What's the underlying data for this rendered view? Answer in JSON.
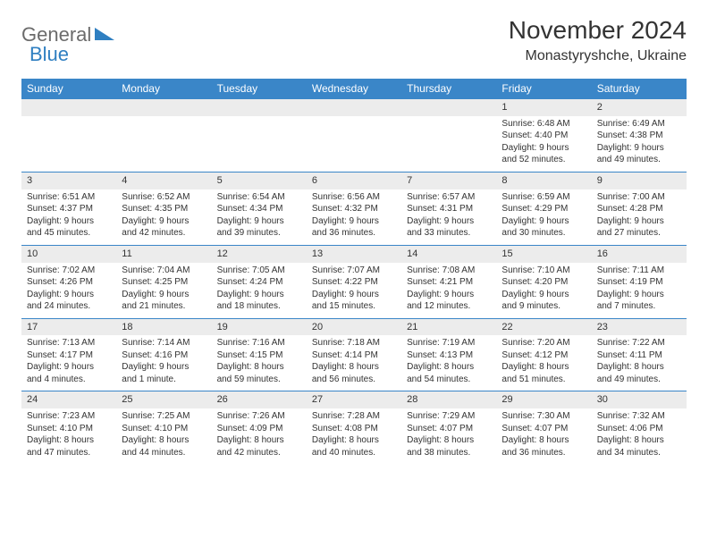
{
  "logo": {
    "text1": "General",
    "text2": "Blue"
  },
  "title": "November 2024",
  "location": "Monastyryshche, Ukraine",
  "colors": {
    "header_bg": "#3a86c8",
    "header_fg": "#ffffff",
    "daynum_bg": "#ececec",
    "border": "#3a86c8",
    "text": "#333333",
    "logo_gray": "#6b6b6b",
    "logo_blue": "#2f7fc1"
  },
  "day_headers": [
    "Sunday",
    "Monday",
    "Tuesday",
    "Wednesday",
    "Thursday",
    "Friday",
    "Saturday"
  ],
  "weeks": [
    [
      {
        "n": "",
        "l1": "",
        "l2": "",
        "l3": "",
        "l4": ""
      },
      {
        "n": "",
        "l1": "",
        "l2": "",
        "l3": "",
        "l4": ""
      },
      {
        "n": "",
        "l1": "",
        "l2": "",
        "l3": "",
        "l4": ""
      },
      {
        "n": "",
        "l1": "",
        "l2": "",
        "l3": "",
        "l4": ""
      },
      {
        "n": "",
        "l1": "",
        "l2": "",
        "l3": "",
        "l4": ""
      },
      {
        "n": "1",
        "l1": "Sunrise: 6:48 AM",
        "l2": "Sunset: 4:40 PM",
        "l3": "Daylight: 9 hours",
        "l4": "and 52 minutes."
      },
      {
        "n": "2",
        "l1": "Sunrise: 6:49 AM",
        "l2": "Sunset: 4:38 PM",
        "l3": "Daylight: 9 hours",
        "l4": "and 49 minutes."
      }
    ],
    [
      {
        "n": "3",
        "l1": "Sunrise: 6:51 AM",
        "l2": "Sunset: 4:37 PM",
        "l3": "Daylight: 9 hours",
        "l4": "and 45 minutes."
      },
      {
        "n": "4",
        "l1": "Sunrise: 6:52 AM",
        "l2": "Sunset: 4:35 PM",
        "l3": "Daylight: 9 hours",
        "l4": "and 42 minutes."
      },
      {
        "n": "5",
        "l1": "Sunrise: 6:54 AM",
        "l2": "Sunset: 4:34 PM",
        "l3": "Daylight: 9 hours",
        "l4": "and 39 minutes."
      },
      {
        "n": "6",
        "l1": "Sunrise: 6:56 AM",
        "l2": "Sunset: 4:32 PM",
        "l3": "Daylight: 9 hours",
        "l4": "and 36 minutes."
      },
      {
        "n": "7",
        "l1": "Sunrise: 6:57 AM",
        "l2": "Sunset: 4:31 PM",
        "l3": "Daylight: 9 hours",
        "l4": "and 33 minutes."
      },
      {
        "n": "8",
        "l1": "Sunrise: 6:59 AM",
        "l2": "Sunset: 4:29 PM",
        "l3": "Daylight: 9 hours",
        "l4": "and 30 minutes."
      },
      {
        "n": "9",
        "l1": "Sunrise: 7:00 AM",
        "l2": "Sunset: 4:28 PM",
        "l3": "Daylight: 9 hours",
        "l4": "and 27 minutes."
      }
    ],
    [
      {
        "n": "10",
        "l1": "Sunrise: 7:02 AM",
        "l2": "Sunset: 4:26 PM",
        "l3": "Daylight: 9 hours",
        "l4": "and 24 minutes."
      },
      {
        "n": "11",
        "l1": "Sunrise: 7:04 AM",
        "l2": "Sunset: 4:25 PM",
        "l3": "Daylight: 9 hours",
        "l4": "and 21 minutes."
      },
      {
        "n": "12",
        "l1": "Sunrise: 7:05 AM",
        "l2": "Sunset: 4:24 PM",
        "l3": "Daylight: 9 hours",
        "l4": "and 18 minutes."
      },
      {
        "n": "13",
        "l1": "Sunrise: 7:07 AM",
        "l2": "Sunset: 4:22 PM",
        "l3": "Daylight: 9 hours",
        "l4": "and 15 minutes."
      },
      {
        "n": "14",
        "l1": "Sunrise: 7:08 AM",
        "l2": "Sunset: 4:21 PM",
        "l3": "Daylight: 9 hours",
        "l4": "and 12 minutes."
      },
      {
        "n": "15",
        "l1": "Sunrise: 7:10 AM",
        "l2": "Sunset: 4:20 PM",
        "l3": "Daylight: 9 hours",
        "l4": "and 9 minutes."
      },
      {
        "n": "16",
        "l1": "Sunrise: 7:11 AM",
        "l2": "Sunset: 4:19 PM",
        "l3": "Daylight: 9 hours",
        "l4": "and 7 minutes."
      }
    ],
    [
      {
        "n": "17",
        "l1": "Sunrise: 7:13 AM",
        "l2": "Sunset: 4:17 PM",
        "l3": "Daylight: 9 hours",
        "l4": "and 4 minutes."
      },
      {
        "n": "18",
        "l1": "Sunrise: 7:14 AM",
        "l2": "Sunset: 4:16 PM",
        "l3": "Daylight: 9 hours",
        "l4": "and 1 minute."
      },
      {
        "n": "19",
        "l1": "Sunrise: 7:16 AM",
        "l2": "Sunset: 4:15 PM",
        "l3": "Daylight: 8 hours",
        "l4": "and 59 minutes."
      },
      {
        "n": "20",
        "l1": "Sunrise: 7:18 AM",
        "l2": "Sunset: 4:14 PM",
        "l3": "Daylight: 8 hours",
        "l4": "and 56 minutes."
      },
      {
        "n": "21",
        "l1": "Sunrise: 7:19 AM",
        "l2": "Sunset: 4:13 PM",
        "l3": "Daylight: 8 hours",
        "l4": "and 54 minutes."
      },
      {
        "n": "22",
        "l1": "Sunrise: 7:20 AM",
        "l2": "Sunset: 4:12 PM",
        "l3": "Daylight: 8 hours",
        "l4": "and 51 minutes."
      },
      {
        "n": "23",
        "l1": "Sunrise: 7:22 AM",
        "l2": "Sunset: 4:11 PM",
        "l3": "Daylight: 8 hours",
        "l4": "and 49 minutes."
      }
    ],
    [
      {
        "n": "24",
        "l1": "Sunrise: 7:23 AM",
        "l2": "Sunset: 4:10 PM",
        "l3": "Daylight: 8 hours",
        "l4": "and 47 minutes."
      },
      {
        "n": "25",
        "l1": "Sunrise: 7:25 AM",
        "l2": "Sunset: 4:10 PM",
        "l3": "Daylight: 8 hours",
        "l4": "and 44 minutes."
      },
      {
        "n": "26",
        "l1": "Sunrise: 7:26 AM",
        "l2": "Sunset: 4:09 PM",
        "l3": "Daylight: 8 hours",
        "l4": "and 42 minutes."
      },
      {
        "n": "27",
        "l1": "Sunrise: 7:28 AM",
        "l2": "Sunset: 4:08 PM",
        "l3": "Daylight: 8 hours",
        "l4": "and 40 minutes."
      },
      {
        "n": "28",
        "l1": "Sunrise: 7:29 AM",
        "l2": "Sunset: 4:07 PM",
        "l3": "Daylight: 8 hours",
        "l4": "and 38 minutes."
      },
      {
        "n": "29",
        "l1": "Sunrise: 7:30 AM",
        "l2": "Sunset: 4:07 PM",
        "l3": "Daylight: 8 hours",
        "l4": "and 36 minutes."
      },
      {
        "n": "30",
        "l1": "Sunrise: 7:32 AM",
        "l2": "Sunset: 4:06 PM",
        "l3": "Daylight: 8 hours",
        "l4": "and 34 minutes."
      }
    ]
  ]
}
